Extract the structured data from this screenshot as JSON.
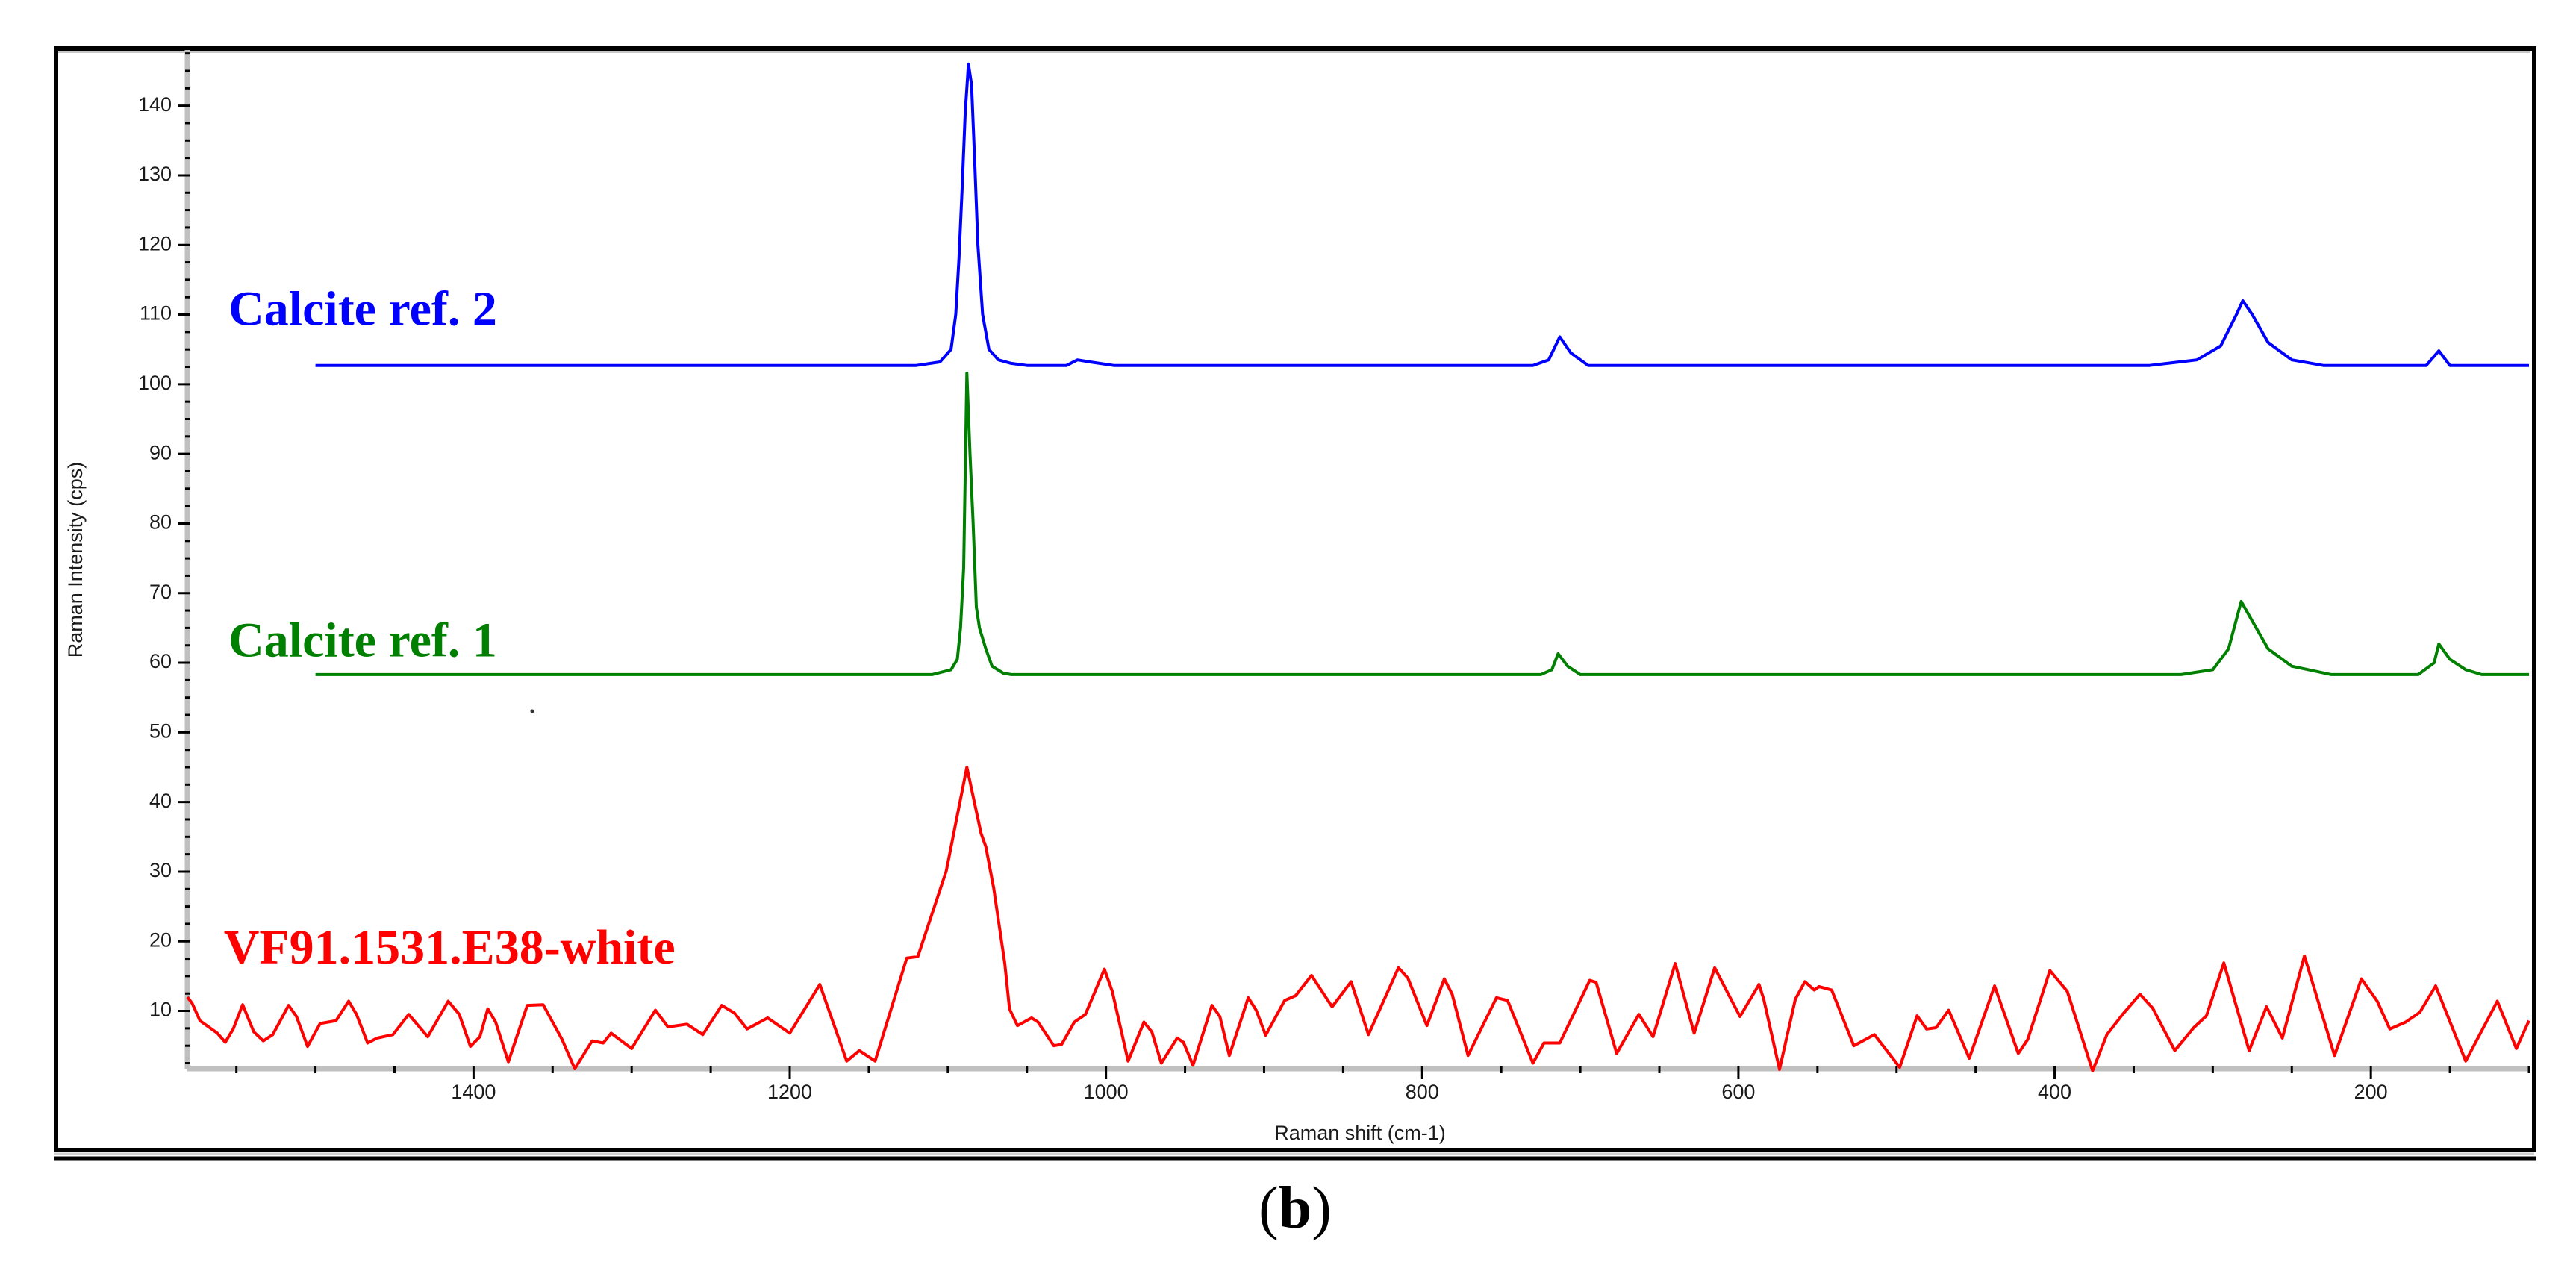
{
  "figure": {
    "panel_label_open": "(",
    "panel_label_letter": "b",
    "panel_label_close": ")"
  },
  "chart_data": {
    "type": "line",
    "title": "",
    "xlabel": "Raman shift (cm-1)",
    "ylabel": "Raman Intensity (cps)",
    "xlim": [
      1581,
      100
    ],
    "ylim": [
      1.7,
      148
    ],
    "x_reversed": true,
    "grid": false,
    "legend": "inline labels",
    "x_ticks": [
      1400,
      1200,
      1000,
      800,
      600,
      400,
      200
    ],
    "x_tick_labels": [
      "1400",
      "1200",
      "1000",
      "800",
      "600",
      "400",
      "200"
    ],
    "y_ticks": [
      10,
      20,
      30,
      40,
      50,
      60,
      70,
      80,
      90,
      100,
      110,
      120,
      130,
      140
    ],
    "y_tick_labels": [
      "10",
      "20",
      "30",
      "40",
      "50",
      "60",
      "70",
      "80",
      "90",
      "100",
      "110",
      "120",
      "130",
      "140"
    ],
    "series": [
      {
        "name": "Calcite ref. 2",
        "color": "#0000ff",
        "label_x": 1555,
        "label_y": 108.5,
        "points": [
          [
            1500,
            102.7
          ],
          [
            1120,
            102.7
          ],
          [
            1105,
            103.2
          ],
          [
            1098,
            105
          ],
          [
            1095,
            110
          ],
          [
            1093,
            118
          ],
          [
            1091,
            128
          ],
          [
            1089,
            139
          ],
          [
            1087,
            146
          ],
          [
            1085,
            143
          ],
          [
            1083,
            132
          ],
          [
            1081,
            120
          ],
          [
            1078,
            110
          ],
          [
            1074,
            105
          ],
          [
            1068,
            103.5
          ],
          [
            1060,
            103
          ],
          [
            1050,
            102.7
          ],
          [
            1025,
            102.7
          ],
          [
            1018,
            103.5
          ],
          [
            1010,
            103.2
          ],
          [
            995,
            102.7
          ],
          [
            730,
            102.7
          ],
          [
            720,
            103.5
          ],
          [
            713,
            106.8
          ],
          [
            706,
            104.5
          ],
          [
            695,
            102.7
          ],
          [
            340,
            102.7
          ],
          [
            310,
            103.5
          ],
          [
            295,
            105.5
          ],
          [
            285,
            110
          ],
          [
            281,
            112
          ],
          [
            275,
            110
          ],
          [
            265,
            106
          ],
          [
            250,
            103.5
          ],
          [
            230,
            102.7
          ],
          [
            165,
            102.7
          ],
          [
            157,
            104.8
          ],
          [
            150,
            102.7
          ],
          [
            100,
            102.7
          ]
        ]
      },
      {
        "name": "Calcite ref. 1",
        "color": "#008000",
        "label_x": 1555,
        "label_y": 60.9,
        "points": [
          [
            1500,
            58.3
          ],
          [
            1110,
            58.3
          ],
          [
            1098,
            59
          ],
          [
            1094,
            60.5
          ],
          [
            1092,
            65
          ],
          [
            1090,
            73.6
          ],
          [
            1088,
            101.6
          ],
          [
            1086,
            90
          ],
          [
            1084,
            80
          ],
          [
            1082,
            68
          ],
          [
            1080,
            65
          ],
          [
            1076,
            62
          ],
          [
            1072,
            59.5
          ],
          [
            1065,
            58.5
          ],
          [
            1060,
            58.3
          ],
          [
            725,
            58.3
          ],
          [
            718,
            59
          ],
          [
            714,
            61.3
          ],
          [
            708,
            59.5
          ],
          [
            700,
            58.3
          ],
          [
            320,
            58.3
          ],
          [
            300,
            59
          ],
          [
            290,
            62
          ],
          [
            282,
            68.8
          ],
          [
            275,
            66
          ],
          [
            265,
            62
          ],
          [
            250,
            59.5
          ],
          [
            225,
            58.3
          ],
          [
            170,
            58.3
          ],
          [
            160,
            60
          ],
          [
            157,
            62.7
          ],
          [
            150,
            60.5
          ],
          [
            140,
            59
          ],
          [
            130,
            58.3
          ],
          [
            100,
            58.3
          ]
        ]
      },
      {
        "name": "VF91.1531.E38-white",
        "color": "#ff0000",
        "label_x": 1558,
        "label_y": 16.8,
        "points": [
          [
            1581,
            12.0
          ],
          [
            1578,
            11.1
          ],
          [
            1573,
            8.6
          ],
          [
            1562,
            6.8
          ],
          [
            1557,
            5.5
          ],
          [
            1552,
            7.4
          ],
          [
            1546,
            10.9
          ],
          [
            1539,
            7.0
          ],
          [
            1533,
            5.7
          ],
          [
            1527,
            6.6
          ],
          [
            1517,
            10.8
          ],
          [
            1512,
            9.2
          ],
          [
            1505,
            4.9
          ],
          [
            1497,
            8.2
          ],
          [
            1487,
            8.6
          ],
          [
            1479,
            11.4
          ],
          [
            1474,
            9.5
          ],
          [
            1467,
            5.4
          ],
          [
            1461,
            6.1
          ],
          [
            1451,
            6.6
          ],
          [
            1441,
            9.5
          ],
          [
            1429,
            6.3
          ],
          [
            1416,
            11.4
          ],
          [
            1409,
            9.5
          ],
          [
            1402,
            4.9
          ],
          [
            1396,
            6.3
          ],
          [
            1391,
            10.3
          ],
          [
            1386,
            8.4
          ],
          [
            1378,
            2.7
          ],
          [
            1366,
            10.8
          ],
          [
            1356,
            10.9
          ],
          [
            1344,
            5.9
          ],
          [
            1336,
            1.7
          ],
          [
            1325,
            5.7
          ],
          [
            1318,
            5.4
          ],
          [
            1313,
            6.8
          ],
          [
            1300,
            4.6
          ],
          [
            1285,
            10.1
          ],
          [
            1277,
            7.7
          ],
          [
            1265,
            8.1
          ],
          [
            1255,
            6.6
          ],
          [
            1243,
            10.8
          ],
          [
            1235,
            9.7
          ],
          [
            1227,
            7.4
          ],
          [
            1214,
            9.0
          ],
          [
            1200,
            6.8
          ],
          [
            1181,
            13.8
          ],
          [
            1164,
            2.8
          ],
          [
            1156,
            4.3
          ],
          [
            1146,
            2.8
          ],
          [
            1126,
            17.6
          ],
          [
            1119,
            17.8
          ],
          [
            1101,
            30.1
          ],
          [
            1088,
            45.0
          ],
          [
            1079,
            35.5
          ],
          [
            1076,
            33.6
          ],
          [
            1071,
            27.6
          ],
          [
            1064,
            16.8
          ],
          [
            1061,
            10.3
          ],
          [
            1056,
            7.9
          ],
          [
            1047,
            9.0
          ],
          [
            1043,
            8.4
          ],
          [
            1033,
            5.0
          ],
          [
            1028,
            5.2
          ],
          [
            1020,
            8.4
          ],
          [
            1013,
            9.5
          ],
          [
            1001,
            16.0
          ],
          [
            996,
            12.8
          ],
          [
            986,
            2.8
          ],
          [
            976,
            8.4
          ],
          [
            971,
            7.0
          ],
          [
            965,
            2.5
          ],
          [
            955,
            6.1
          ],
          [
            951,
            5.5
          ],
          [
            945,
            2.2
          ],
          [
            933,
            10.8
          ],
          [
            928,
            9.2
          ],
          [
            922,
            3.6
          ],
          [
            910,
            11.9
          ],
          [
            905,
            10.1
          ],
          [
            899,
            6.5
          ],
          [
            887,
            11.5
          ],
          [
            880,
            12.2
          ],
          [
            870,
            15.1
          ],
          [
            857,
            10.6
          ],
          [
            845,
            14.2
          ],
          [
            834,
            6.6
          ],
          [
            815,
            16.2
          ],
          [
            809,
            14.7
          ],
          [
            797,
            7.9
          ],
          [
            786,
            14.6
          ],
          [
            781,
            12.4
          ],
          [
            771,
            3.6
          ],
          [
            753,
            11.9
          ],
          [
            746,
            11.5
          ],
          [
            730,
            2.5
          ],
          [
            723,
            5.4
          ],
          [
            713,
            5.4
          ],
          [
            694,
            14.4
          ],
          [
            690,
            14.1
          ],
          [
            677,
            3.9
          ],
          [
            663,
            9.5
          ],
          [
            654,
            6.3
          ],
          [
            640,
            16.8
          ],
          [
            628,
            6.8
          ],
          [
            615,
            16.2
          ],
          [
            599,
            9.2
          ],
          [
            587,
            13.8
          ],
          [
            584,
            11.7
          ],
          [
            574,
            1.6
          ],
          [
            564,
            11.7
          ],
          [
            558,
            14.2
          ],
          [
            552,
            13.0
          ],
          [
            549,
            13.5
          ],
          [
            541,
            13.0
          ],
          [
            527,
            5.0
          ],
          [
            514,
            6.6
          ],
          [
            498,
            1.9
          ],
          [
            487,
            9.3
          ],
          [
            481,
            7.4
          ],
          [
            475,
            7.6
          ],
          [
            467,
            10.1
          ],
          [
            454,
            3.2
          ],
          [
            438,
            13.6
          ],
          [
            423,
            3.9
          ],
          [
            417,
            5.9
          ],
          [
            403,
            15.8
          ],
          [
            392,
            12.8
          ],
          [
            376,
            1.4
          ],
          [
            367,
            6.6
          ],
          [
            357,
            9.5
          ],
          [
            346,
            12.4
          ],
          [
            338,
            10.4
          ],
          [
            324,
            4.3
          ],
          [
            312,
            7.6
          ],
          [
            304,
            9.3
          ],
          [
            293,
            16.9
          ],
          [
            277,
            4.3
          ],
          [
            266,
            10.6
          ],
          [
            256,
            6.1
          ],
          [
            242,
            17.9
          ],
          [
            223,
            3.6
          ],
          [
            206,
            14.6
          ],
          [
            196,
            11.4
          ],
          [
            188,
            7.4
          ],
          [
            178,
            8.4
          ],
          [
            169,
            9.8
          ],
          [
            159,
            13.6
          ],
          [
            140,
            2.8
          ],
          [
            120,
            11.4
          ],
          [
            108,
            4.6
          ],
          [
            100,
            8.6
          ]
        ]
      }
    ]
  }
}
